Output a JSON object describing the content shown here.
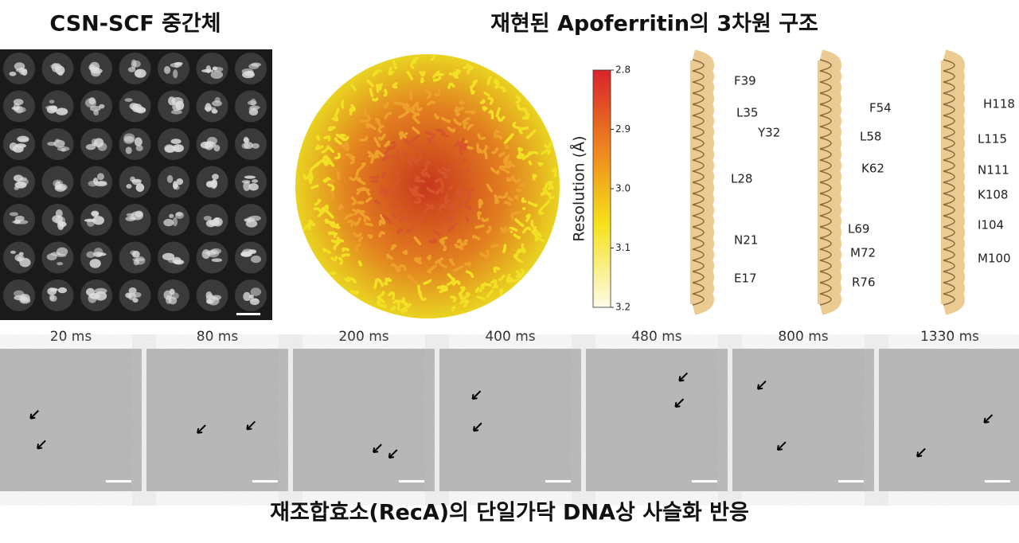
{
  "panels": {
    "csn": {
      "title": "CSN-SCF 중간체"
    },
    "apoferritin": {
      "title": "재현된 Apoferritin의 3차원 구조",
      "colorbar": {
        "label": "Resolution (Å)",
        "ticks": [
          "2.8",
          "2.9",
          "3.0",
          "3.1",
          "3.2"
        ]
      },
      "helices": [
        [
          "F39",
          "L35",
          "Y32",
          "L28",
          "N21",
          "E17"
        ],
        [
          "F54",
          "L58",
          "K62",
          "L69",
          "M72",
          "R76"
        ],
        [
          "H118",
          "L115",
          "N111",
          "K108",
          "I104",
          "M100"
        ]
      ]
    },
    "reca": {
      "caption": "재조합효소(RecA)의 단일가닥 DNA상 사슬화 반응",
      "times": [
        "20 ms",
        "80 ms",
        "200 ms",
        "400 ms",
        "480 ms",
        "800 ms",
        "1330 ms"
      ]
    }
  }
}
